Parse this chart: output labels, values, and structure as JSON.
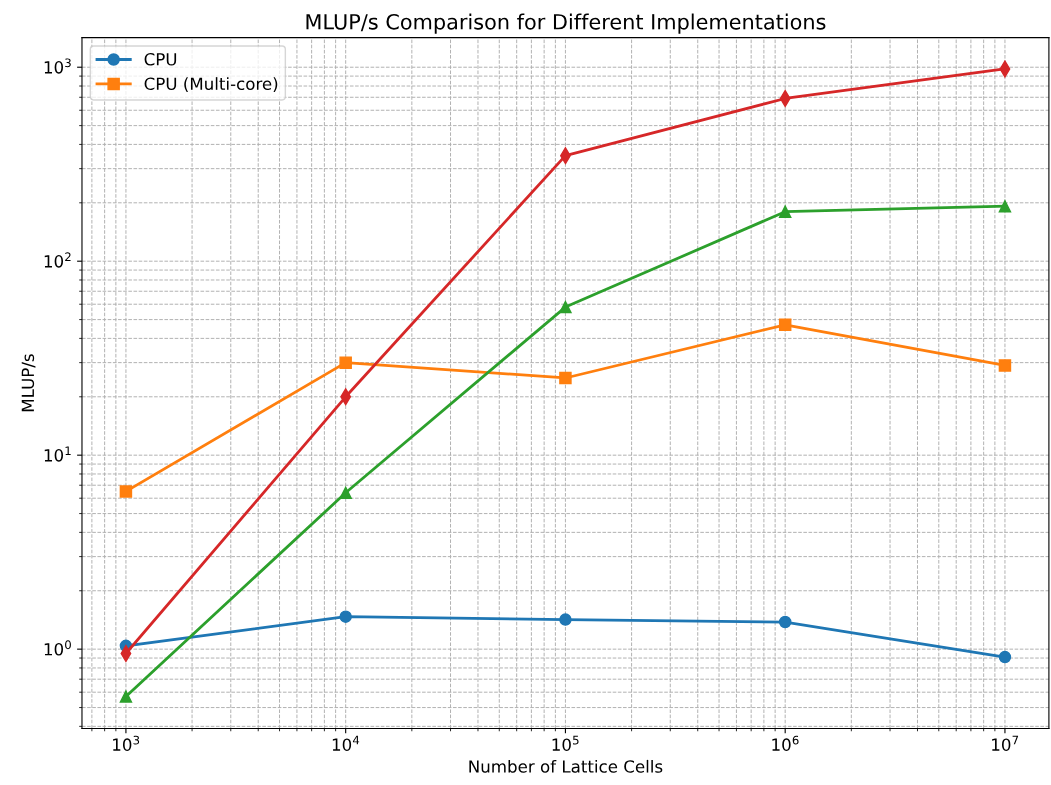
{
  "chart_data": {
    "type": "line",
    "title": "MLUP/s Comparison for Different Implementations",
    "xlabel": "Number of Lattice Cells",
    "ylabel": "MLUP/s",
    "x": [
      1000,
      10000,
      100000,
      1000000,
      10000000
    ],
    "series": [
      {
        "name": "CPU",
        "color": "#1f77b4",
        "marker": "circle",
        "values": [
          1.04,
          1.47,
          1.42,
          1.38,
          0.91
        ]
      },
      {
        "name": "CPU (Multi-core)",
        "color": "#ff7f0e",
        "marker": "square",
        "values": [
          6.5,
          30,
          25,
          47,
          29
        ]
      },
      {
        "color": "#2ca02c",
        "marker": "triangle",
        "values": [
          0.57,
          6.4,
          58,
          180,
          192
        ]
      },
      {
        "color": "#d62728",
        "marker": "diamond",
        "values": [
          0.95,
          20,
          350,
          690,
          980
        ]
      }
    ],
    "log": "xy",
    "xlim": [
      631,
      15850000
    ],
    "ylim": [
      0.39,
      1420
    ],
    "xticks": [
      {
        "value": 1000,
        "label": "10$^{3}$"
      },
      {
        "value": 10000,
        "label": "10$^{4}$"
      },
      {
        "value": 100000,
        "label": "10$^{5}$"
      },
      {
        "value": 1000000,
        "label": "10$^{6}$"
      },
      {
        "value": 10000000,
        "label": "10$^{7}$"
      }
    ],
    "yticks": [
      {
        "value": 1,
        "label": "10$^{0}$"
      },
      {
        "value": 10,
        "label": "10$^{1}$"
      },
      {
        "value": 100,
        "label": "10$^{2}$"
      },
      {
        "value": 1000,
        "label": "10$^{3}$"
      }
    ],
    "grid": true,
    "legend": "top left",
    "line_style": "solid"
  }
}
